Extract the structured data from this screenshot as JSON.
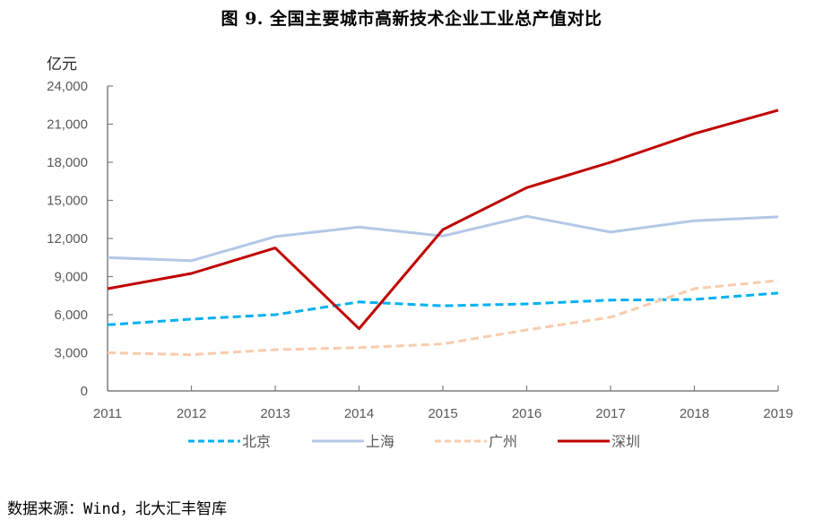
{
  "title": "图 9.  全国主要城市高新技术企业工业总产值对比",
  "source": "数据来源：Wind，北大汇丰智库",
  "chart_data": {
    "type": "line",
    "title": "图 9.  全国主要城市高新技术企业工业总产值对比",
    "ylabel": "亿元",
    "xlabel": "",
    "ylim": [
      0,
      24000
    ],
    "yticks": [
      0,
      3000,
      6000,
      9000,
      12000,
      15000,
      18000,
      21000,
      24000
    ],
    "ytick_labels": [
      "0",
      "3,000",
      "6,000",
      "9,000",
      "12,000",
      "15,000",
      "18,000",
      "21,000",
      "24,000"
    ],
    "categories": [
      "2011",
      "2012",
      "2013",
      "2014",
      "2015",
      "2016",
      "2017",
      "2018",
      "2019"
    ],
    "grid": false,
    "legend_position": "bottom",
    "series": [
      {
        "name": "北京",
        "color": "#00B0F0",
        "style": "dashed",
        "values": [
          5200,
          5650,
          6000,
          7000,
          6700,
          6850,
          7150,
          7200,
          7700
        ]
      },
      {
        "name": "上海",
        "color": "#B4C7E7",
        "style": "solid",
        "values": [
          10500,
          10250,
          12150,
          12900,
          12200,
          13750,
          12500,
          13400,
          13700
        ]
      },
      {
        "name": "广州",
        "color": "#F8CBAD",
        "style": "dashed",
        "values": [
          3000,
          2850,
          3250,
          3400,
          3700,
          4800,
          5800,
          8050,
          8700
        ]
      },
      {
        "name": "深圳",
        "color": "#C00000",
        "style": "solid",
        "values": [
          8050,
          9250,
          11250,
          4900,
          12700,
          16000,
          18000,
          20250,
          22100
        ]
      }
    ]
  }
}
